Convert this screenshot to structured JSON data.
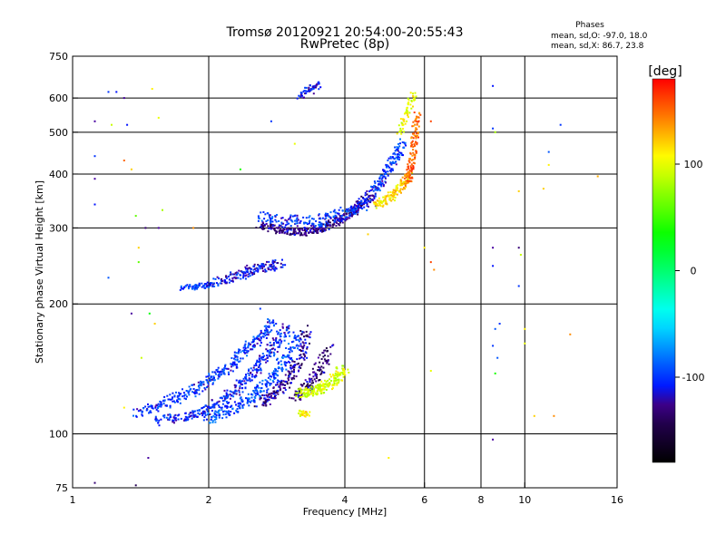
{
  "header": {
    "title": "Tromsø 20120921 20:54:00-20:55:43",
    "subtitle": "RwPretec (8p)",
    "stats_title": "Phases",
    "stats_line1": "mean, sd,O: -97.0, 18.0",
    "stats_line2": "mean, sd,X:  86.7, 23.8"
  },
  "colorbar": {
    "label": "[deg]",
    "range": [
      -180,
      180
    ],
    "ticks": [
      100,
      0,
      -100
    ],
    "tick_labels": [
      "100",
      "0",
      "-100"
    ]
  },
  "chart_data": {
    "type": "scatter",
    "xlabel": "Frequency [MHz]",
    "ylabel": "Stationary phase Virtual Height [km]",
    "xscale": "log",
    "yscale": "log",
    "xlim": [
      1,
      16
    ],
    "ylim": [
      75,
      750
    ],
    "x_ticks": [
      1,
      2,
      4,
      6,
      8,
      10,
      16
    ],
    "x_tick_labels": [
      "1",
      "2",
      "4",
      "6",
      "8",
      "10",
      "16"
    ],
    "y_ticks": [
      75,
      100,
      200,
      300,
      400,
      500,
      600,
      750
    ],
    "y_tick_labels": [
      "75",
      "100",
      "200",
      "300",
      "400",
      "500",
      "600",
      "750"
    ],
    "grid": true,
    "color_scale": "phase [deg]",
    "traces": [
      {
        "x": [
          2.1,
          2.3,
          2.5,
          2.7,
          2.9
        ],
        "y": [
          225,
          232,
          240,
          244,
          248
        ],
        "phase": -110,
        "jitter": 0.05,
        "n": 6
      },
      {
        "x": [
          1.75,
          1.9,
          2.1
        ],
        "y": [
          218,
          220,
          222
        ],
        "phase": -100,
        "jitter": 0.03,
        "n": 5
      },
      {
        "x": [
          1.4,
          1.6,
          1.8,
          2.0,
          2.2,
          2.4,
          2.6,
          2.8
        ],
        "y": [
          112,
          118,
          124,
          132,
          142,
          155,
          168,
          182
        ],
        "phase": -100,
        "jitter": 0.05,
        "n": 7
      },
      {
        "x": [
          1.55,
          1.8,
          2.0,
          2.2,
          2.4,
          2.6,
          2.8,
          3.0
        ],
        "y": [
          107,
          110,
          114,
          122,
          132,
          146,
          160,
          178
        ],
        "phase": -105,
        "jitter": 0.05,
        "n": 7
      },
      {
        "x": [
          2.0,
          2.2,
          2.4,
          2.6,
          2.8,
          3.0,
          3.2
        ],
        "y": [
          108,
          113,
          118,
          126,
          138,
          152,
          172
        ],
        "phase": -95,
        "jitter": 0.05,
        "n": 6
      },
      {
        "x": [
          2.6,
          2.8,
          3.0,
          3.2,
          3.3
        ],
        "y": [
          118,
          124,
          134,
          150,
          178
        ],
        "phase": -125,
        "jitter": 0.05,
        "n": 7
      },
      {
        "x": [
          3.1,
          3.3,
          3.5,
          3.7
        ],
        "y": [
          122,
          128,
          140,
          160
        ],
        "phase": -130,
        "jitter": 0.05,
        "n": 6
      },
      {
        "x": [
          3.2,
          3.4,
          3.6,
          3.8,
          4.0
        ],
        "y": [
          124,
          125,
          128,
          134,
          142
        ],
        "phase": 95,
        "jitter": 0.05,
        "n": 7
      },
      {
        "x": [
          3.2,
          3.3
        ],
        "y": [
          112,
          111
        ],
        "phase": 110,
        "jitter": 0.03,
        "n": 4
      },
      {
        "x": [
          2.6,
          2.8,
          3.0,
          3.2,
          3.4,
          3.6,
          3.8,
          4.0,
          4.2,
          4.4,
          4.6
        ],
        "y": [
          305,
          298,
          294,
          293,
          296,
          300,
          308,
          318,
          330,
          345,
          362
        ],
        "phase": -125,
        "jitter": 0.04,
        "n": 5
      },
      {
        "x": [
          2.6,
          3.0,
          3.4,
          3.8,
          4.2,
          4.6
        ],
        "y": [
          318,
          312,
          310,
          318,
          330,
          350
        ],
        "phase": -100,
        "jitter": 0.06,
        "n": 6
      },
      {
        "x": [
          4.6,
          4.8,
          5.0,
          5.2,
          5.4
        ],
        "y": [
          365,
          385,
          410,
          440,
          480
        ],
        "phase": -100,
        "jitter": 0.04,
        "n": 5
      },
      {
        "x": [
          4.7,
          5.0,
          5.3,
          5.6
        ],
        "y": [
          340,
          350,
          370,
          400
        ],
        "phase": 115,
        "jitter": 0.04,
        "n": 6
      },
      {
        "x": [
          5.5,
          5.6,
          5.7,
          5.8
        ],
        "y": [
          380,
          420,
          480,
          560
        ],
        "phase": 150,
        "jitter": 0.03,
        "n": 6
      },
      {
        "x": [
          5.3,
          5.5,
          5.7
        ],
        "y": [
          500,
          560,
          620
        ],
        "phase": 100,
        "jitter": 0.03,
        "n": 4
      },
      {
        "x": [
          3.2,
          3.4,
          3.5
        ],
        "y": [
          610,
          630,
          650
        ],
        "phase": -110,
        "jitter": 0.04,
        "n": 4
      }
    ],
    "points": [
      {
        "x": 1.12,
        "y": 530,
        "phase": -120
      },
      {
        "x": 1.12,
        "y": 390,
        "phase": -120
      },
      {
        "x": 1.12,
        "y": 340,
        "phase": -110
      },
      {
        "x": 1.12,
        "y": 440,
        "phase": -100
      },
      {
        "x": 1.2,
        "y": 620,
        "phase": -100
      },
      {
        "x": 1.25,
        "y": 620,
        "phase": -110
      },
      {
        "x": 1.22,
        "y": 520,
        "phase": 90
      },
      {
        "x": 1.3,
        "y": 600,
        "phase": -120
      },
      {
        "x": 1.32,
        "y": 520,
        "phase": -110
      },
      {
        "x": 1.3,
        "y": 430,
        "phase": 150
      },
      {
        "x": 1.35,
        "y": 410,
        "phase": 120
      },
      {
        "x": 1.38,
        "y": 320,
        "phase": 60
      },
      {
        "x": 1.4,
        "y": 270,
        "phase": 120
      },
      {
        "x": 1.4,
        "y": 250,
        "phase": 60
      },
      {
        "x": 1.45,
        "y": 300,
        "phase": -130
      },
      {
        "x": 1.48,
        "y": 190,
        "phase": 30
      },
      {
        "x": 1.52,
        "y": 180,
        "phase": 120
      },
      {
        "x": 1.55,
        "y": 300,
        "phase": -120
      },
      {
        "x": 1.55,
        "y": 540,
        "phase": 100
      },
      {
        "x": 1.5,
        "y": 630,
        "phase": 110
      },
      {
        "x": 1.58,
        "y": 330,
        "phase": 80
      },
      {
        "x": 1.42,
        "y": 150,
        "phase": 90
      },
      {
        "x": 1.35,
        "y": 190,
        "phase": -120
      },
      {
        "x": 1.2,
        "y": 230,
        "phase": -90
      },
      {
        "x": 1.47,
        "y": 88,
        "phase": -120
      },
      {
        "x": 1.38,
        "y": 76,
        "phase": -140
      },
      {
        "x": 1.12,
        "y": 77,
        "phase": -130
      },
      {
        "x": 1.3,
        "y": 115,
        "phase": 110
      },
      {
        "x": 1.85,
        "y": 300,
        "phase": 140
      },
      {
        "x": 2.35,
        "y": 410,
        "phase": 40
      },
      {
        "x": 2.75,
        "y": 530,
        "phase": -100
      },
      {
        "x": 3.1,
        "y": 470,
        "phase": 100
      },
      {
        "x": 2.6,
        "y": 195,
        "phase": -100
      },
      {
        "x": 4.5,
        "y": 290,
        "phase": 120
      },
      {
        "x": 5.0,
        "y": 88,
        "phase": 110
      },
      {
        "x": 6.2,
        "y": 530,
        "phase": 160
      },
      {
        "x": 6.2,
        "y": 250,
        "phase": 160
      },
      {
        "x": 6.3,
        "y": 240,
        "phase": 140
      },
      {
        "x": 6.0,
        "y": 270,
        "phase": 110
      },
      {
        "x": 6.2,
        "y": 140,
        "phase": 100
      },
      {
        "x": 8.5,
        "y": 640,
        "phase": -110
      },
      {
        "x": 8.5,
        "y": 510,
        "phase": -100
      },
      {
        "x": 8.6,
        "y": 500,
        "phase": 80
      },
      {
        "x": 8.5,
        "y": 270,
        "phase": -120
      },
      {
        "x": 8.5,
        "y": 245,
        "phase": -110
      },
      {
        "x": 8.6,
        "y": 175,
        "phase": -90
      },
      {
        "x": 8.8,
        "y": 180,
        "phase": -100
      },
      {
        "x": 8.5,
        "y": 160,
        "phase": -100
      },
      {
        "x": 8.7,
        "y": 150,
        "phase": -90
      },
      {
        "x": 8.6,
        "y": 138,
        "phase": 40
      },
      {
        "x": 8.5,
        "y": 97,
        "phase": -120
      },
      {
        "x": 9.7,
        "y": 365,
        "phase": 120
      },
      {
        "x": 9.7,
        "y": 270,
        "phase": -130
      },
      {
        "x": 9.8,
        "y": 260,
        "phase": 90
      },
      {
        "x": 9.7,
        "y": 220,
        "phase": -100
      },
      {
        "x": 10.0,
        "y": 175,
        "phase": 110
      },
      {
        "x": 10.0,
        "y": 162,
        "phase": 100
      },
      {
        "x": 10.5,
        "y": 110,
        "phase": 120
      },
      {
        "x": 11.3,
        "y": 450,
        "phase": -90
      },
      {
        "x": 11.3,
        "y": 420,
        "phase": 110
      },
      {
        "x": 11.0,
        "y": 370,
        "phase": 120
      },
      {
        "x": 11.6,
        "y": 110,
        "phase": 140
      },
      {
        "x": 12.0,
        "y": 520,
        "phase": -100
      },
      {
        "x": 12.6,
        "y": 170,
        "phase": 140
      },
      {
        "x": 14.5,
        "y": 395,
        "phase": 130
      }
    ]
  }
}
